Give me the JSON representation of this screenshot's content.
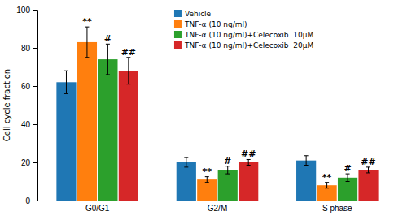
{
  "chart_data": {
    "type": "bar",
    "categories": [
      "G0/G1",
      "G2/M",
      "S phase"
    ],
    "series": [
      {
        "name": "Vehicle",
        "values": [
          62,
          20,
          21
        ],
        "errors": [
          6,
          2.5,
          2.5
        ]
      },
      {
        "name": "TNF-α (10 ng/ml)",
        "values": [
          83,
          11,
          8
        ],
        "errors": [
          8,
          1.5,
          1.5
        ],
        "annotations": [
          "**",
          "**",
          "**"
        ]
      },
      {
        "name": "TNF-α (10 ng/ml)+Celecoxib  10μM",
        "values": [
          74,
          16,
          12
        ],
        "errors": [
          8,
          2.0,
          2.0
        ],
        "annotations": [
          "#",
          "#",
          "#"
        ]
      },
      {
        "name": "TNF-α (10 ng/ml)+Celecoxib  20μM",
        "values": [
          68,
          20,
          16
        ],
        "errors": [
          7,
          1.5,
          1.5
        ],
        "annotations": [
          "##",
          "##",
          "##"
        ]
      }
    ],
    "ylabel": "Cell cycle fraction",
    "ylim": [
      0,
      100
    ],
    "yticks": [
      0,
      20,
      40,
      60,
      80,
      100
    ],
    "grid": false,
    "legend": "top"
  }
}
